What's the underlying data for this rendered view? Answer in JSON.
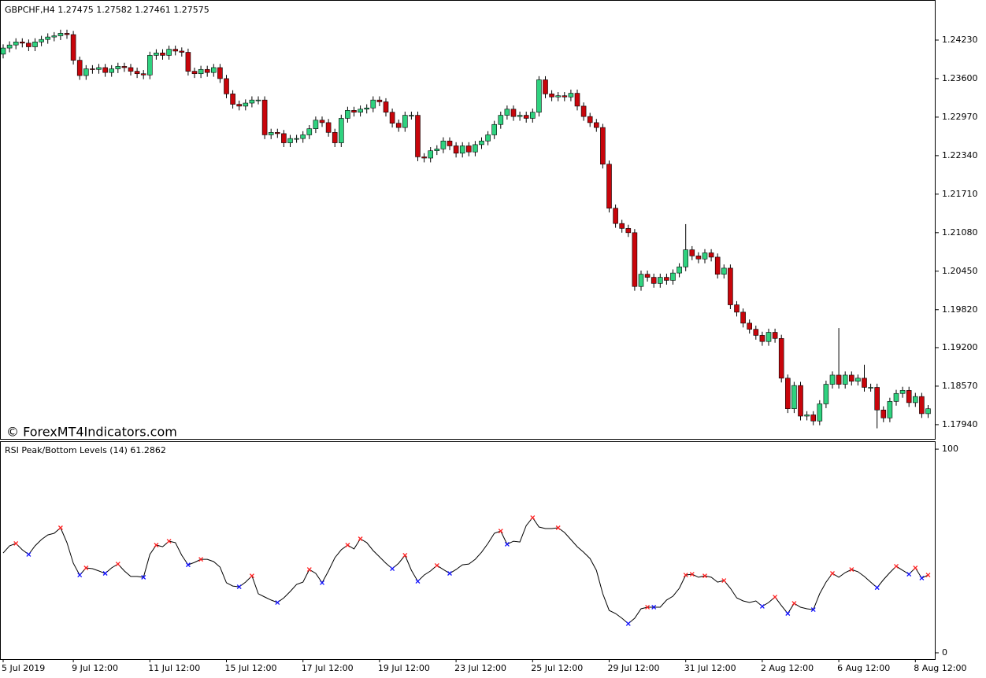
{
  "chart_data": [
    {
      "type": "candlestick",
      "title": "GBPCHF,H4  1.27475 1.27582 1.27461 1.27575",
      "watermark": "© ForexMT4Indicators.com",
      "categories": [
        "5 Jul 2019",
        null,
        null,
        null,
        null,
        null,
        null,
        null,
        null,
        null,
        null,
        "9 Jul 12:00",
        null,
        null,
        null,
        null,
        null,
        null,
        null,
        null,
        null,
        null,
        null,
        "11 Jul 12:00",
        null,
        null,
        null,
        null,
        null,
        null,
        null,
        null,
        null,
        null,
        null,
        "15 Jul 12:00",
        null,
        null,
        null,
        null,
        null,
        null,
        null,
        null,
        null,
        null,
        null,
        "17 Jul 12:00",
        null,
        null,
        null,
        null,
        null,
        null,
        null,
        null,
        null,
        null,
        null,
        "19 Jul 12:00",
        null,
        null,
        null,
        null,
        null,
        null,
        null,
        null,
        null,
        null,
        null,
        "23 Jul 12:00",
        null,
        null,
        null,
        null,
        null,
        null,
        null,
        null,
        null,
        null,
        null,
        "25 Jul 12:00",
        null,
        null,
        null,
        null,
        null,
        null,
        null,
        null,
        null,
        null,
        null,
        "29 Jul 12:00",
        null,
        null,
        null,
        null,
        null,
        null,
        null,
        null,
        null,
        null,
        null,
        "31 Jul 12:00",
        null,
        null,
        null,
        null,
        null,
        null,
        null,
        null,
        null,
        null,
        null,
        "2 Aug 12:00",
        null,
        null,
        null,
        null,
        null,
        null,
        null,
        null,
        null,
        null,
        null,
        "6 Aug 12:00",
        null,
        null,
        null,
        null,
        null,
        null,
        null,
        null,
        null,
        null,
        null,
        "8 Aug 12:00",
        null,
        null
      ],
      "open": [
        1.24,
        1.241,
        1.2415,
        1.242,
        1.2418,
        1.2412,
        1.242,
        1.2424,
        1.2428,
        1.243,
        1.2434,
        1.2432,
        1.239,
        1.2365,
        1.2376,
        1.2375,
        1.2378,
        1.237,
        1.2376,
        1.238,
        1.2378,
        1.2372,
        1.2368,
        1.2366,
        1.2398,
        1.2402,
        1.2398,
        1.2408,
        1.2405,
        1.2403,
        1.2372,
        1.2368,
        1.2375,
        1.237,
        1.2378,
        1.236,
        1.2335,
        1.2318,
        1.2315,
        1.232,
        1.2325,
        1.2325,
        1.2268,
        1.2272,
        1.227,
        1.2255,
        1.2262,
        1.2262,
        1.2268,
        1.2278,
        1.2292,
        1.2288,
        1.2272,
        1.2255,
        1.2295,
        1.2308,
        1.2305,
        1.231,
        1.2312,
        1.2325,
        1.2322,
        1.2305,
        1.2287,
        1.228,
        1.23,
        1.23,
        1.2232,
        1.223,
        1.2242,
        1.2245,
        1.2258,
        1.225,
        1.2238,
        1.225,
        1.224,
        1.2252,
        1.2258,
        1.2268,
        1.2285,
        1.23,
        1.231,
        1.2298,
        1.23,
        1.2295,
        1.2305,
        1.2358,
        1.2335,
        1.233,
        1.2332,
        1.233,
        1.2336,
        1.2315,
        1.2298,
        1.2288,
        1.228,
        1.222,
        1.2148,
        1.2123,
        1.2115,
        1.2108,
        1.202,
        1.204,
        1.2035,
        1.2025,
        1.2035,
        1.203,
        1.2042,
        1.2052,
        1.208,
        1.207,
        1.2065,
        1.2075,
        1.2068,
        1.204,
        1.205,
        1.199,
        1.1978,
        1.196,
        1.195,
        1.194,
        1.193,
        1.1945,
        1.1935,
        1.187,
        1.182,
        1.1858,
        1.1808,
        1.181,
        1.18,
        1.1828,
        1.186,
        1.1875,
        1.186,
        1.1875,
        1.1865,
        1.187,
        1.1855,
        1.1855,
        1.1818,
        1.1805,
        1.1832,
        1.1845,
        1.185,
        1.183,
        1.184,
        1.1812
      ],
      "high": [
        1.2416,
        1.2421,
        1.2426,
        1.2426,
        1.2424,
        1.2426,
        1.243,
        1.2434,
        1.2436,
        1.244,
        1.244,
        1.2438,
        1.2396,
        1.2382,
        1.2382,
        1.2384,
        1.2384,
        1.2382,
        1.2386,
        1.2386,
        1.2384,
        1.2378,
        1.2374,
        1.2404,
        1.2408,
        1.2408,
        1.2414,
        1.2414,
        1.2411,
        1.2409,
        1.2378,
        1.2381,
        1.2381,
        1.2384,
        1.2384,
        1.2366,
        1.2341,
        1.2324,
        1.2326,
        1.2331,
        1.2331,
        1.2331,
        1.2278,
        1.2278,
        1.2276,
        1.2268,
        1.2268,
        1.2274,
        1.2284,
        1.2298,
        1.2298,
        1.2294,
        1.2278,
        1.2301,
        1.2314,
        1.2314,
        1.2316,
        1.2318,
        1.2331,
        1.2331,
        1.2328,
        1.2311,
        1.2293,
        1.2306,
        1.2306,
        1.2306,
        1.2238,
        1.2248,
        1.2251,
        1.2264,
        1.2264,
        1.2256,
        1.2256,
        1.2256,
        1.2258,
        1.2264,
        1.2274,
        1.2291,
        1.2306,
        1.2316,
        1.2316,
        1.2306,
        1.2306,
        1.2311,
        1.2364,
        1.2364,
        1.2341,
        1.2338,
        1.2338,
        1.2342,
        1.2342,
        1.2321,
        1.2304,
        1.2294,
        1.2286,
        1.2226,
        1.2154,
        1.2129,
        1.2121,
        1.2114,
        1.2046,
        1.2046,
        1.2041,
        1.2041,
        1.2041,
        1.2048,
        1.2058,
        1.2122,
        1.2086,
        1.2076,
        1.2081,
        1.2081,
        1.2074,
        1.2056,
        1.2056,
        1.1996,
        1.1984,
        1.1966,
        1.1956,
        1.1946,
        1.1951,
        1.1951,
        1.1941,
        1.1876,
        1.1864,
        1.1864,
        1.1816,
        1.1816,
        1.1834,
        1.1866,
        1.1881,
        1.1952,
        1.1881,
        1.1881,
        1.1876,
        1.1892,
        1.1861,
        1.1861,
        1.1824,
        1.1838,
        1.1851,
        1.1856,
        1.1856,
        1.1846,
        1.1846,
        1.1826
      ],
      "low": [
        1.2393,
        1.2403,
        1.2408,
        1.2411,
        1.2405,
        1.2405,
        1.2413,
        1.2417,
        1.2421,
        1.2423,
        1.2425,
        1.2383,
        1.2358,
        1.2358,
        1.2368,
        1.2368,
        1.2363,
        1.2363,
        1.2369,
        1.2371,
        1.2365,
        1.2361,
        1.2359,
        1.2359,
        1.2391,
        1.2391,
        1.2391,
        1.2398,
        1.2396,
        1.2365,
        1.2361,
        1.2361,
        1.2363,
        1.2363,
        1.2353,
        1.2328,
        1.2311,
        1.2308,
        1.2308,
        1.2313,
        1.2318,
        1.2261,
        1.2261,
        1.2263,
        1.2248,
        1.2248,
        1.2255,
        1.2255,
        1.2261,
        1.2271,
        1.2281,
        1.2265,
        1.2248,
        1.2248,
        1.2288,
        1.2298,
        1.2298,
        1.2303,
        1.2305,
        1.2315,
        1.2298,
        1.228,
        1.2273,
        1.2273,
        1.2293,
        1.2225,
        1.2223,
        1.2223,
        1.2235,
        1.2238,
        1.2243,
        1.2231,
        1.2231,
        1.2233,
        1.2233,
        1.2245,
        1.2251,
        1.2261,
        1.2278,
        1.2293,
        1.2291,
        1.2291,
        1.2288,
        1.2288,
        1.2298,
        1.2328,
        1.2323,
        1.2323,
        1.2323,
        1.2323,
        1.2308,
        1.2291,
        1.2281,
        1.2273,
        1.2213,
        1.2141,
        1.2116,
        1.2108,
        1.2101,
        1.2013,
        1.2013,
        1.2028,
        1.2018,
        1.2018,
        1.2023,
        1.2023,
        1.2035,
        1.2045,
        1.2063,
        1.2058,
        1.2058,
        1.2061,
        1.2033,
        1.2033,
        1.1983,
        1.1971,
        1.1953,
        1.1943,
        1.1933,
        1.1923,
        1.1923,
        1.1928,
        1.1863,
        1.1813,
        1.1813,
        1.1801,
        1.1801,
        1.1793,
        1.1793,
        1.1821,
        1.1853,
        1.1853,
        1.1853,
        1.1858,
        1.1858,
        1.1848,
        1.1848,
        1.1788,
        1.1798,
        1.1798,
        1.1825,
        1.1838,
        1.1823,
        1.1823,
        1.1805,
        1.1805
      ],
      "close": [
        1.241,
        1.2415,
        1.242,
        1.2418,
        1.2412,
        1.242,
        1.2424,
        1.2428,
        1.243,
        1.2434,
        1.2432,
        1.239,
        1.2365,
        1.2376,
        1.2375,
        1.2378,
        1.237,
        1.2376,
        1.238,
        1.2378,
        1.2372,
        1.2368,
        1.2366,
        1.2398,
        1.2402,
        1.2398,
        1.2408,
        1.2405,
        1.2403,
        1.2372,
        1.2368,
        1.2375,
        1.237,
        1.2378,
        1.236,
        1.2335,
        1.2318,
        1.2315,
        1.232,
        1.2325,
        1.2325,
        1.2268,
        1.2272,
        1.227,
        1.2255,
        1.2262,
        1.2262,
        1.2268,
        1.2278,
        1.2292,
        1.2288,
        1.2272,
        1.2255,
        1.2295,
        1.2308,
        1.2305,
        1.231,
        1.2312,
        1.2325,
        1.2322,
        1.2305,
        1.2287,
        1.228,
        1.23,
        1.23,
        1.2232,
        1.223,
        1.2242,
        1.2245,
        1.2258,
        1.225,
        1.2238,
        1.225,
        1.224,
        1.2252,
        1.2258,
        1.2268,
        1.2285,
        1.23,
        1.231,
        1.2298,
        1.23,
        1.2295,
        1.2305,
        1.2358,
        1.2335,
        1.233,
        1.2332,
        1.233,
        1.2336,
        1.2315,
        1.2298,
        1.2288,
        1.228,
        1.222,
        1.2148,
        1.2123,
        1.2115,
        1.2108,
        1.202,
        1.204,
        1.2035,
        1.2025,
        1.2035,
        1.203,
        1.2042,
        1.2052,
        1.208,
        1.207,
        1.2065,
        1.2075,
        1.2068,
        1.204,
        1.205,
        1.199,
        1.1978,
        1.196,
        1.195,
        1.194,
        1.193,
        1.1945,
        1.1935,
        1.187,
        1.182,
        1.1858,
        1.1808,
        1.181,
        1.18,
        1.1828,
        1.186,
        1.1875,
        1.186,
        1.1875,
        1.1865,
        1.187,
        1.1855,
        1.1855,
        1.1818,
        1.1805,
        1.1832,
        1.1845,
        1.185,
        1.183,
        1.184,
        1.1812,
        1.182
      ],
      "up_color": "#2fd27f",
      "down_color": "#c8050b",
      "ylim": [
        1.1772,
        1.2486
      ],
      "yticks": [
        {
          "value": 1.2423,
          "label": "1.24230"
        },
        {
          "value": 1.236,
          "label": "1.23600"
        },
        {
          "value": 1.2297,
          "label": "1.22970"
        },
        {
          "value": 1.2234,
          "label": "1.22340"
        },
        {
          "value": 1.2171,
          "label": "1.21710"
        },
        {
          "value": 1.2108,
          "label": "1.21080"
        },
        {
          "value": 1.2045,
          "label": "1.20450"
        },
        {
          "value": 1.1982,
          "label": "1.19820"
        },
        {
          "value": 1.192,
          "label": "1.19200"
        },
        {
          "value": 1.1857,
          "label": "1.18570"
        },
        {
          "value": 1.1794,
          "label": "1.17940"
        }
      ]
    },
    {
      "type": "line",
      "title": "RSI Peak/Bottom Levels (14)  61.2862",
      "values": [
        49.0,
        52.5,
        53.7,
        50.6,
        48.3,
        52.5,
        55.6,
        57.9,
        58.7,
        61.4,
        54.1,
        44.0,
        38.2,
        41.7,
        41.3,
        40.2,
        39.0,
        41.7,
        43.6,
        40.2,
        37.5,
        37.5,
        37.1,
        48.3,
        52.9,
        52.1,
        54.8,
        54.1,
        47.9,
        43.2,
        44.4,
        45.9,
        45.9,
        44.8,
        42.1,
        34.4,
        32.8,
        32.4,
        34.7,
        37.8,
        29.0,
        27.4,
        25.9,
        24.7,
        27.0,
        30.1,
        33.6,
        34.7,
        40.9,
        39.0,
        34.4,
        40.2,
        46.7,
        50.6,
        52.9,
        51.0,
        56.0,
        54.1,
        50.2,
        47.1,
        44.0,
        41.3,
        44.0,
        47.9,
        40.5,
        35.1,
        38.2,
        40.2,
        42.9,
        40.9,
        39.0,
        40.9,
        43.2,
        43.6,
        45.9,
        49.4,
        53.7,
        58.7,
        59.8,
        53.3,
        54.8,
        54.4,
        62.5,
        66.4,
        61.8,
        61.0,
        61.0,
        61.4,
        59.1,
        55.6,
        52.1,
        49.4,
        46.3,
        40.5,
        29.0,
        20.8,
        19.3,
        17.0,
        14.3,
        17.0,
        21.6,
        22.4,
        22.4,
        22.4,
        25.9,
        27.8,
        31.7,
        38.2,
        38.6,
        37.1,
        37.8,
        37.1,
        34.7,
        35.5,
        31.7,
        27.0,
        25.5,
        24.7,
        25.5,
        22.8,
        24.7,
        27.4,
        23.2,
        19.3,
        24.3,
        22.4,
        21.6,
        21.2,
        29.0,
        34.7,
        39.0,
        37.1,
        39.4,
        40.9,
        39.8,
        37.5,
        34.7,
        32.0,
        35.9,
        39.4,
        42.5,
        40.5,
        38.6,
        41.7,
        36.7,
        38.2
      ],
      "color": "#000000",
      "peaks": [
        2,
        9,
        13,
        18,
        24,
        26,
        31,
        39,
        48,
        54,
        56,
        63,
        68,
        78,
        83,
        87,
        101,
        107,
        108,
        110,
        113,
        121,
        124,
        130,
        133,
        140,
        143,
        145
      ],
      "bottoms": [
        4,
        12,
        16,
        22,
        29,
        37,
        43,
        50,
        61,
        65,
        70,
        79,
        98,
        102,
        119,
        123,
        127,
        137,
        142,
        144
      ],
      "peak_color": "#ff2020",
      "bottom_color": "#1010ff",
      "ylim": [
        -3.1,
        103.5
      ],
      "yticks": [
        0,
        100
      ]
    }
  ]
}
